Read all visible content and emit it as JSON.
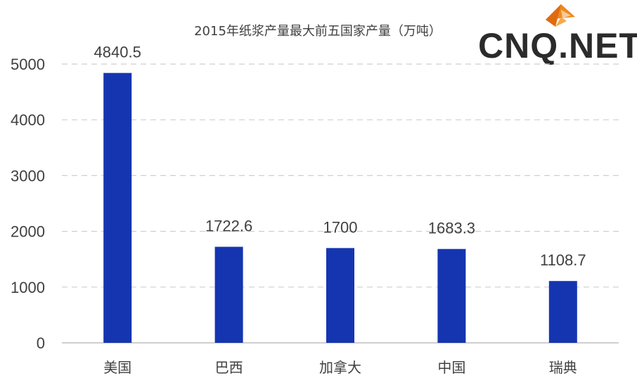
{
  "chart_data": {
    "type": "bar",
    "title": "2015年纸浆产量最大前五国家产量（万吨）",
    "categories": [
      "美国",
      "巴西",
      "加拿大",
      "中国",
      "瑞典"
    ],
    "values": [
      4840.5,
      1722.6,
      1700,
      1683.3,
      1108.7
    ],
    "value_labels": [
      "4840.5",
      "1722.6",
      "1700",
      "1683.3",
      "1108.7"
    ],
    "ylim": [
      0,
      5000
    ],
    "yticks": [
      0,
      1000,
      2000,
      3000,
      4000,
      5000
    ],
    "grid": true,
    "legend": "none",
    "bar_color": "#1535b0"
  },
  "logo": {
    "text": "CNQ.NET",
    "accent_color": "#f08a1e"
  }
}
